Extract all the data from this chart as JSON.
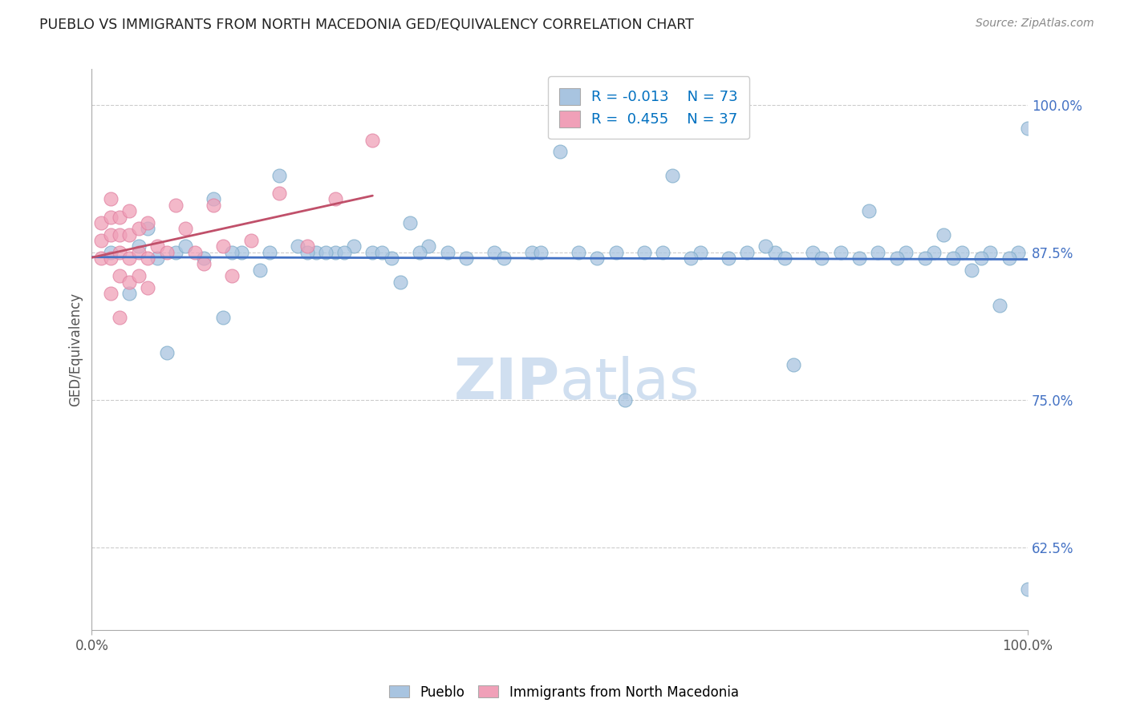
{
  "title": "PUEBLO VS IMMIGRANTS FROM NORTH MACEDONIA GED/EQUIVALENCY CORRELATION CHART",
  "source_text": "Source: ZipAtlas.com",
  "ylabel": "GED/Equivalency",
  "xmin": 0.0,
  "xmax": 1.0,
  "ymin": 0.555,
  "ymax": 1.03,
  "yticks": [
    0.625,
    0.75,
    0.875,
    1.0
  ],
  "ytick_labels": [
    "62.5%",
    "75.0%",
    "87.5%",
    "100.0%"
  ],
  "blue_R": -0.013,
  "blue_N": 73,
  "pink_R": 0.455,
  "pink_N": 37,
  "blue_color": "#a8c4e0",
  "pink_color": "#f0a0b8",
  "blue_edge_color": "#7aaac8",
  "pink_edge_color": "#e080a0",
  "blue_line_color": "#4472c4",
  "pink_line_color": "#c0506a",
  "legend_color": "#0070c0",
  "watermark_color": "#d0dff0",
  "background_color": "#ffffff",
  "grid_color": "#cccccc",
  "blue_x": [
    0.02,
    0.04,
    0.06,
    0.09,
    0.13,
    0.16,
    0.2,
    0.24,
    0.26,
    0.3,
    0.34,
    0.38,
    0.43,
    0.47,
    0.52,
    0.56,
    0.61,
    0.65,
    0.7,
    0.73,
    0.77,
    0.8,
    0.84,
    0.87,
    0.9,
    0.93,
    0.96,
    0.99,
    0.05,
    0.1,
    0.18,
    0.22,
    0.28,
    0.32,
    0.36,
    0.4,
    0.44,
    0.48,
    0.54,
    0.59,
    0.64,
    0.68,
    0.74,
    0.78,
    0.82,
    0.86,
    0.89,
    0.92,
    0.95,
    0.98,
    0.07,
    0.12,
    0.15,
    0.19,
    0.23,
    0.25,
    0.27,
    0.31,
    0.35,
    0.5,
    0.62,
    0.72,
    0.83,
    0.91,
    0.94,
    0.97,
    1.0,
    0.08,
    0.14,
    0.33,
    0.57,
    0.75,
    1.0
  ],
  "blue_y": [
    0.875,
    0.875,
    0.875,
    0.875,
    0.875,
    0.875,
    0.875,
    0.875,
    0.875,
    0.875,
    0.875,
    0.875,
    0.875,
    0.875,
    0.875,
    0.875,
    0.875,
    0.875,
    0.875,
    0.875,
    0.875,
    0.875,
    0.875,
    0.875,
    0.875,
    0.875,
    0.875,
    0.875,
    0.87,
    0.87,
    0.87,
    0.87,
    0.87,
    0.87,
    0.87,
    0.87,
    0.87,
    0.87,
    0.87,
    0.87,
    0.87,
    0.87,
    0.87,
    0.87,
    0.87,
    0.87,
    0.87,
    0.87,
    0.87,
    0.87,
    0.88,
    0.88,
    0.88,
    0.88,
    0.88,
    0.88,
    0.88,
    0.88,
    0.88,
    0.96,
    0.94,
    0.88,
    0.91,
    0.89,
    0.86,
    0.83,
    0.98,
    0.79,
    0.82,
    0.85,
    0.75,
    0.78,
    0.59
  ],
  "blue_y_real": [
    0.875,
    0.84,
    0.895,
    0.875,
    0.92,
    0.875,
    0.94,
    0.875,
    0.875,
    0.875,
    0.9,
    0.875,
    0.875,
    0.875,
    0.875,
    0.875,
    0.875,
    0.875,
    0.875,
    0.875,
    0.875,
    0.875,
    0.875,
    0.875,
    0.875,
    0.875,
    0.875,
    0.875,
    0.88,
    0.88,
    0.86,
    0.88,
    0.88,
    0.87,
    0.88,
    0.87,
    0.87,
    0.875,
    0.87,
    0.875,
    0.87,
    0.87,
    0.87,
    0.87,
    0.87,
    0.87,
    0.87,
    0.87,
    0.87,
    0.87,
    0.87,
    0.87,
    0.875,
    0.875,
    0.875,
    0.875,
    0.875,
    0.875,
    0.875,
    0.96,
    0.94,
    0.88,
    0.91,
    0.89,
    0.86,
    0.83,
    0.98,
    0.79,
    0.82,
    0.85,
    0.75,
    0.78,
    0.59
  ],
  "pink_x": [
    0.01,
    0.01,
    0.01,
    0.02,
    0.02,
    0.02,
    0.02,
    0.02,
    0.03,
    0.03,
    0.03,
    0.03,
    0.03,
    0.04,
    0.04,
    0.04,
    0.04,
    0.05,
    0.05,
    0.05,
    0.06,
    0.06,
    0.06,
    0.07,
    0.08,
    0.09,
    0.1,
    0.11,
    0.12,
    0.13,
    0.14,
    0.15,
    0.17,
    0.2,
    0.23,
    0.26,
    0.3
  ],
  "pink_y": [
    0.87,
    0.885,
    0.9,
    0.84,
    0.87,
    0.89,
    0.905,
    0.92,
    0.82,
    0.855,
    0.875,
    0.89,
    0.905,
    0.85,
    0.87,
    0.89,
    0.91,
    0.855,
    0.875,
    0.895,
    0.845,
    0.87,
    0.9,
    0.88,
    0.875,
    0.915,
    0.895,
    0.875,
    0.865,
    0.915,
    0.88,
    0.855,
    0.885,
    0.925,
    0.88,
    0.92,
    0.97
  ]
}
